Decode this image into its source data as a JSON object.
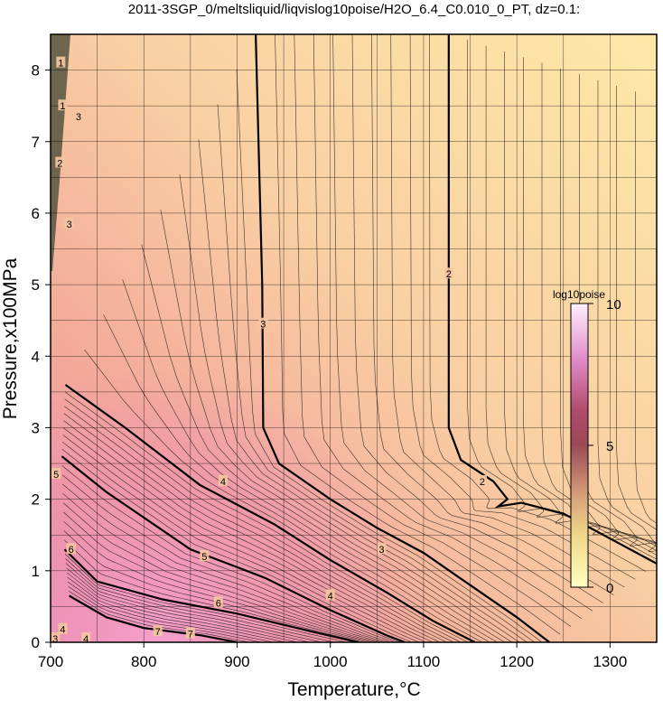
{
  "chart_data": {
    "type": "heatmap",
    "title": "2011-3SGP_0/meltsliquid/liqvislog10poise/H2O_6.4_C0.010_0_PT, dz=0.1:",
    "xlabel": "Temperature,°C",
    "ylabel": "Pressure,x100MPa",
    "xlim": [
      700,
      1350
    ],
    "ylim": [
      0,
      8.5
    ],
    "x_ticks": [
      "700",
      "800",
      "900",
      "1000",
      "1100",
      "1200",
      "1300"
    ],
    "y_ticks": [
      "0",
      "1",
      "2",
      "3",
      "4",
      "5",
      "6",
      "7",
      "8"
    ],
    "grid": true,
    "colorbar": {
      "title": "log10poise",
      "ticks": [
        "0",
        "5",
        "10"
      ],
      "range": [
        0,
        10
      ],
      "placement": "right-inside"
    },
    "contour_interval": 0.1,
    "major_contours": [
      {
        "level": "2",
        "points": [
          [
            1127,
            8.5
          ],
          [
            1127,
            3.0
          ],
          [
            1140,
            2.55
          ],
          [
            1175,
            2.25
          ],
          [
            1190,
            2.0
          ],
          [
            1180,
            1.9
          ],
          [
            1205,
            1.95
          ],
          [
            1250,
            1.8
          ],
          [
            1300,
            1.45
          ],
          [
            1350,
            1.1
          ]
        ]
      },
      {
        "level": "3",
        "points": [
          [
            920,
            8.5
          ],
          [
            927,
            5.0
          ],
          [
            928,
            3.0
          ],
          [
            945,
            2.5
          ],
          [
            1000,
            2.0
          ],
          [
            1050,
            1.6
          ],
          [
            1100,
            1.25
          ],
          [
            1150,
            0.8
          ],
          [
            1200,
            0.35
          ],
          [
            1235,
            0.0
          ]
        ]
      },
      {
        "level": "4",
        "points": [
          [
            716,
            3.6
          ],
          [
            780,
            3.0
          ],
          [
            860,
            2.2
          ],
          [
            940,
            1.65
          ],
          [
            1000,
            1.15
          ],
          [
            1060,
            0.7
          ],
          [
            1110,
            0.3
          ],
          [
            1155,
            0.0
          ]
        ]
      },
      {
        "level": "5",
        "points": [
          [
            712,
            2.6
          ],
          [
            760,
            2.1
          ],
          [
            850,
            1.3
          ],
          [
            930,
            0.9
          ],
          [
            1000,
            0.45
          ],
          [
            1060,
            0.1
          ],
          [
            1080,
            0.0
          ]
        ]
      },
      {
        "level": "6",
        "points": [
          [
            715,
            1.3
          ],
          [
            750,
            0.85
          ],
          [
            820,
            0.6
          ],
          [
            900,
            0.4
          ],
          [
            980,
            0.15
          ],
          [
            1030,
            0.0
          ]
        ]
      },
      {
        "level": "7",
        "points": [
          [
            720,
            0.65
          ],
          [
            760,
            0.35
          ],
          [
            800,
            0.2
          ],
          [
            860,
            0.1
          ],
          [
            900,
            0.0
          ]
        ]
      }
    ],
    "contour_labels": [
      {
        "text": "2",
        "x": 1127,
        "y": 5.15
      },
      {
        "text": "2",
        "x": 1163,
        "y": 2.25
      },
      {
        "text": "3",
        "x": 928,
        "y": 4.45
      },
      {
        "text": "3",
        "x": 1055,
        "y": 1.3
      },
      {
        "text": "3",
        "x": 730,
        "y": 7.35
      },
      {
        "text": "3",
        "x": 720,
        "y": 5.85
      },
      {
        "text": "2",
        "x": 710,
        "y": 6.7
      },
      {
        "text": "4",
        "x": 885,
        "y": 2.25
      },
      {
        "text": "4",
        "x": 1000,
        "y": 0.65
      },
      {
        "text": "5",
        "x": 865,
        "y": 1.2
      },
      {
        "text": "6",
        "x": 880,
        "y": 0.55
      },
      {
        "text": "7",
        "x": 850,
        "y": 0.12
      },
      {
        "text": "6",
        "x": 722,
        "y": 1.3
      },
      {
        "text": "5",
        "x": 706,
        "y": 2.35
      },
      {
        "text": "4",
        "x": 713,
        "y": 0.18
      },
      {
        "text": "4",
        "x": 738,
        "y": 0.05
      },
      {
        "text": "3",
        "x": 705,
        "y": 0.05
      },
      {
        "text": "7",
        "x": 815,
        "y": 0.15
      },
      {
        "text": "1",
        "x": 711,
        "y": 8.1
      },
      {
        "text": "1",
        "x": 713,
        "y": 7.5
      }
    ]
  }
}
